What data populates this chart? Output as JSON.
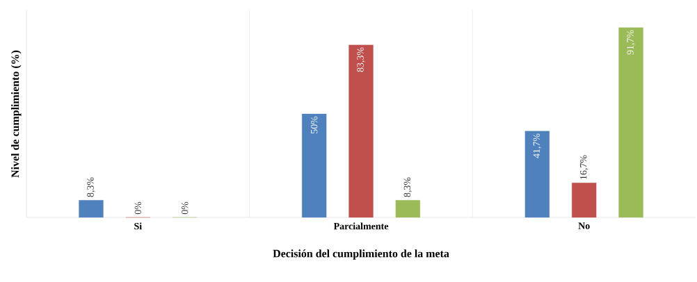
{
  "chart_data": {
    "type": "bar",
    "xlabel": "Decisión del cumplimiento de la meta",
    "ylabel": "Nivel de cumplimiento (%)",
    "categories": [
      "Si",
      "Parcialmente",
      "No"
    ],
    "series": [
      {
        "color": "#4f81bd",
        "values": [
          8.3,
          50,
          41.7
        ],
        "value_labels": [
          "8,3%",
          "50%",
          "41,7%"
        ]
      },
      {
        "color": "#c0504d",
        "values": [
          0,
          83.3,
          16.7
        ],
        "value_labels": [
          "0%",
          "83,3%",
          "16,7%"
        ]
      },
      {
        "color": "#9bbb59",
        "values": [
          0,
          8.3,
          91.7
        ],
        "value_labels": [
          "0%",
          "8,3%",
          "91,7%"
        ]
      }
    ],
    "ylim": [
      0,
      100
    ],
    "tick_labels": "x",
    "grid": "x"
  }
}
